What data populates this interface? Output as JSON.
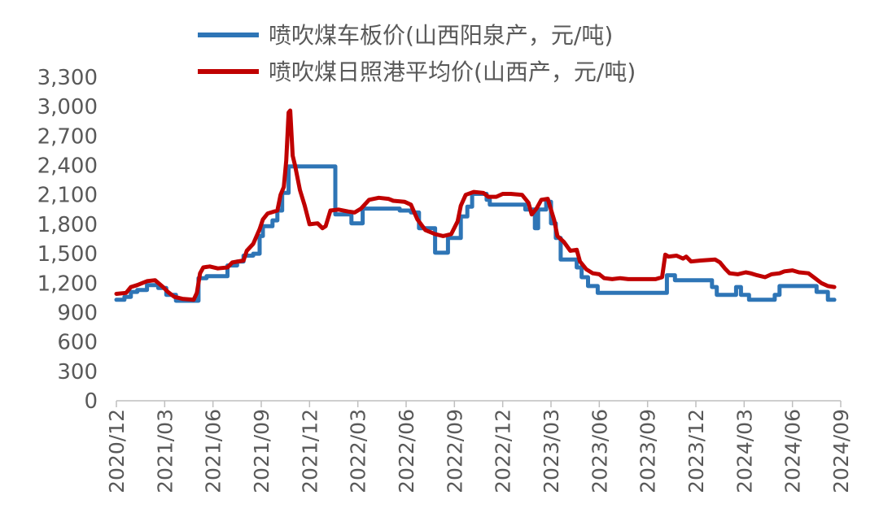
{
  "chart_data": {
    "type": "line",
    "title": "",
    "xlabel": "",
    "ylabel": "",
    "ylim": [
      0,
      3300
    ],
    "yticks": [
      0,
      300,
      600,
      900,
      1200,
      1500,
      1800,
      2100,
      2400,
      2700,
      3000,
      3300
    ],
    "ytick_labels": [
      "0",
      "300",
      "600",
      "900",
      "1,200",
      "1,500",
      "1,800",
      "2,100",
      "2,400",
      "2,700",
      "3,000",
      "3,300"
    ],
    "xtick_labels": [
      "2020/12",
      "2021/03",
      "2021/06",
      "2021/09",
      "2021/12",
      "2022/03",
      "2022/06",
      "2022/09",
      "2022/12",
      "2023/03",
      "2023/06",
      "2023/09",
      "2023/12",
      "2024/03",
      "2024/06",
      "2024/09"
    ],
    "legend_position": "top",
    "grid": false,
    "x_unit": "months since 2020/12",
    "series": [
      {
        "name": "喷吹煤车板价(山西阳泉产，元/吨)",
        "color": "#2E75B6",
        "step": true,
        "points": [
          [
            0,
            1030
          ],
          [
            0.5,
            1060
          ],
          [
            0.9,
            1110
          ],
          [
            1.3,
            1130
          ],
          [
            1.9,
            1180
          ],
          [
            2.6,
            1150
          ],
          [
            3.1,
            1080
          ],
          [
            3.7,
            1020
          ],
          [
            5.0,
            1020
          ],
          [
            5.1,
            1250
          ],
          [
            5.6,
            1270
          ],
          [
            6.6,
            1270
          ],
          [
            6.9,
            1380
          ],
          [
            7.5,
            1420
          ],
          [
            7.9,
            1480
          ],
          [
            8.5,
            1500
          ],
          [
            8.9,
            1680
          ],
          [
            9.1,
            1780
          ],
          [
            9.7,
            1840
          ],
          [
            10.0,
            1940
          ],
          [
            10.3,
            2120
          ],
          [
            10.7,
            2390
          ],
          [
            11.0,
            2390
          ],
          [
            13.5,
            2390
          ],
          [
            13.6,
            1900
          ],
          [
            14.6,
            1810
          ],
          [
            15.2,
            1810
          ],
          [
            15.3,
            1960
          ],
          [
            17.3,
            1960
          ],
          [
            17.6,
            1940
          ],
          [
            18.3,
            1920
          ],
          [
            18.8,
            1760
          ],
          [
            19.7,
            1760
          ],
          [
            19.8,
            1510
          ],
          [
            20.5,
            1510
          ],
          [
            20.6,
            1660
          ],
          [
            21.3,
            1660
          ],
          [
            21.4,
            1880
          ],
          [
            21.8,
            1980
          ],
          [
            22.1,
            2110
          ],
          [
            23.0,
            2050
          ],
          [
            23.2,
            2000
          ],
          [
            25.2,
            2000
          ],
          [
            25.4,
            1950
          ],
          [
            26.0,
            1760
          ],
          [
            26.2,
            1950
          ],
          [
            26.7,
            2030
          ],
          [
            27.0,
            1810
          ],
          [
            27.3,
            1660
          ],
          [
            27.6,
            1440
          ],
          [
            28.3,
            1440
          ],
          [
            28.6,
            1360
          ],
          [
            28.9,
            1260
          ],
          [
            29.3,
            1170
          ],
          [
            29.9,
            1100
          ],
          [
            34.1,
            1100
          ],
          [
            34.2,
            1280
          ],
          [
            34.7,
            1230
          ],
          [
            36.8,
            1230
          ],
          [
            37.0,
            1160
          ],
          [
            37.3,
            1080
          ],
          [
            38.4,
            1080
          ],
          [
            38.5,
            1160
          ],
          [
            38.8,
            1080
          ],
          [
            39.3,
            1030
          ],
          [
            40.7,
            1030
          ],
          [
            40.9,
            1080
          ],
          [
            41.2,
            1170
          ],
          [
            43.2,
            1170
          ],
          [
            43.5,
            1110
          ],
          [
            44.2,
            1030
          ],
          [
            44.6,
            1030
          ]
        ]
      },
      {
        "name": "喷吹煤日照港平均价(山西产，元/吨)",
        "color": "#C00000",
        "step": false,
        "points": [
          [
            0,
            1090
          ],
          [
            0.6,
            1100
          ],
          [
            0.9,
            1160
          ],
          [
            1.3,
            1180
          ],
          [
            1.6,
            1200
          ],
          [
            1.9,
            1220
          ],
          [
            2.4,
            1230
          ],
          [
            2.9,
            1160
          ],
          [
            3.2,
            1110
          ],
          [
            3.6,
            1060
          ],
          [
            4.1,
            1040
          ],
          [
            4.8,
            1030
          ],
          [
            5.0,
            1100
          ],
          [
            5.2,
            1300
          ],
          [
            5.4,
            1360
          ],
          [
            5.8,
            1370
          ],
          [
            6.3,
            1350
          ],
          [
            6.9,
            1360
          ],
          [
            7.2,
            1410
          ],
          [
            7.9,
            1430
          ],
          [
            8.1,
            1530
          ],
          [
            8.5,
            1600
          ],
          [
            8.9,
            1750
          ],
          [
            9.1,
            1850
          ],
          [
            9.4,
            1910
          ],
          [
            10.0,
            1940
          ],
          [
            10.2,
            2100
          ],
          [
            10.4,
            2180
          ],
          [
            10.55,
            2450
          ],
          [
            10.7,
            2940
          ],
          [
            10.8,
            2960
          ],
          [
            10.95,
            2500
          ],
          [
            11.1,
            2400
          ],
          [
            11.4,
            2150
          ],
          [
            11.7,
            1990
          ],
          [
            12.0,
            1800
          ],
          [
            12.5,
            1810
          ],
          [
            12.8,
            1760
          ],
          [
            13.0,
            1780
          ],
          [
            13.3,
            1940
          ],
          [
            13.8,
            1950
          ],
          [
            14.4,
            1930
          ],
          [
            14.8,
            1920
          ],
          [
            15.2,
            1960
          ],
          [
            15.7,
            2050
          ],
          [
            16.3,
            2070
          ],
          [
            16.9,
            2060
          ],
          [
            17.2,
            2040
          ],
          [
            17.9,
            2030
          ],
          [
            18.3,
            2000
          ],
          [
            18.7,
            1850
          ],
          [
            19.2,
            1740
          ],
          [
            19.8,
            1700
          ],
          [
            20.3,
            1680
          ],
          [
            20.8,
            1700
          ],
          [
            21.2,
            1830
          ],
          [
            21.4,
            1990
          ],
          [
            21.7,
            2100
          ],
          [
            22.2,
            2130
          ],
          [
            22.8,
            2120
          ],
          [
            23.1,
            2080
          ],
          [
            23.6,
            2080
          ],
          [
            24.0,
            2110
          ],
          [
            24.5,
            2110
          ],
          [
            25.2,
            2100
          ],
          [
            25.6,
            2020
          ],
          [
            25.8,
            1900
          ],
          [
            26.1,
            1960
          ],
          [
            26.4,
            2050
          ],
          [
            26.8,
            2060
          ],
          [
            27.2,
            1840
          ],
          [
            27.4,
            1680
          ],
          [
            27.8,
            1620
          ],
          [
            28.2,
            1530
          ],
          [
            28.6,
            1540
          ],
          [
            28.8,
            1420
          ],
          [
            29.2,
            1340
          ],
          [
            29.6,
            1300
          ],
          [
            30.0,
            1290
          ],
          [
            30.3,
            1250
          ],
          [
            30.8,
            1240
          ],
          [
            31.3,
            1250
          ],
          [
            31.8,
            1240
          ],
          [
            33.0,
            1240
          ],
          [
            33.5,
            1240
          ],
          [
            33.9,
            1260
          ],
          [
            34.1,
            1490
          ],
          [
            34.3,
            1470
          ],
          [
            34.8,
            1480
          ],
          [
            35.2,
            1450
          ],
          [
            35.4,
            1470
          ],
          [
            35.7,
            1420
          ],
          [
            36.3,
            1430
          ],
          [
            37.2,
            1440
          ],
          [
            37.5,
            1410
          ],
          [
            37.8,
            1350
          ],
          [
            38.1,
            1300
          ],
          [
            38.6,
            1290
          ],
          [
            39.1,
            1310
          ],
          [
            39.4,
            1300
          ],
          [
            39.8,
            1280
          ],
          [
            40.3,
            1260
          ],
          [
            40.7,
            1290
          ],
          [
            41.2,
            1300
          ],
          [
            41.5,
            1320
          ],
          [
            42.0,
            1330
          ],
          [
            42.4,
            1310
          ],
          [
            43.0,
            1300
          ],
          [
            43.4,
            1250
          ],
          [
            43.8,
            1200
          ],
          [
            44.2,
            1170
          ],
          [
            44.6,
            1160
          ]
        ]
      }
    ]
  }
}
